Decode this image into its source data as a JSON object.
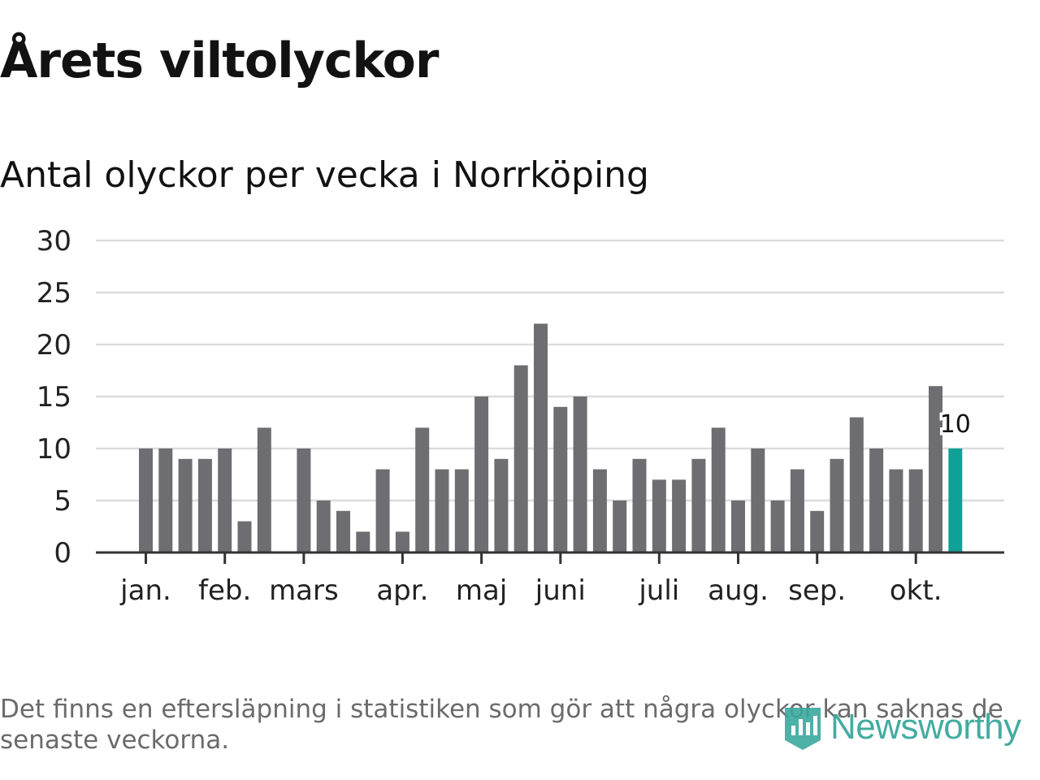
{
  "title": "Årets viltolyckor",
  "subtitle": "Antal olyckor per vecka i Norrköping",
  "note": "Det finns en eftersläpning i statistiken som gör att några olyckor kan saknas de senaste veckorna.",
  "logo": {
    "name": "Newsworthy",
    "color": "#3aa89d"
  },
  "colors": {
    "bar": "#6e6d72",
    "highlight": "#0fa196",
    "grid": "#dddddd",
    "axis": "#333333",
    "text": "#222222"
  },
  "chart_data": {
    "type": "bar",
    "title": "Antal olyckor per vecka i Norrköping",
    "ylim": [
      0,
      30
    ],
    "yticks": [
      0,
      5,
      10,
      15,
      20,
      25,
      30
    ],
    "month_labels": [
      {
        "label": "jan.",
        "week": 1
      },
      {
        "label": "feb.",
        "week": 5
      },
      {
        "label": "mars",
        "week": 9
      },
      {
        "label": "apr.",
        "week": 14
      },
      {
        "label": "maj",
        "week": 18
      },
      {
        "label": "juni",
        "week": 22
      },
      {
        "label": "juli",
        "week": 27
      },
      {
        "label": "aug.",
        "week": 31
      },
      {
        "label": "sep.",
        "week": 35
      },
      {
        "label": "okt.",
        "week": 40
      }
    ],
    "values": [
      10,
      10,
      9,
      9,
      10,
      3,
      12,
      0,
      10,
      5,
      4,
      2,
      8,
      2,
      12,
      8,
      8,
      15,
      9,
      18,
      22,
      14,
      15,
      8,
      5,
      9,
      7,
      7,
      9,
      12,
      5,
      10,
      5,
      8,
      4,
      9,
      13,
      10,
      8,
      8,
      16,
      10
    ],
    "highlight_index": 41,
    "highlight_label": "10"
  }
}
